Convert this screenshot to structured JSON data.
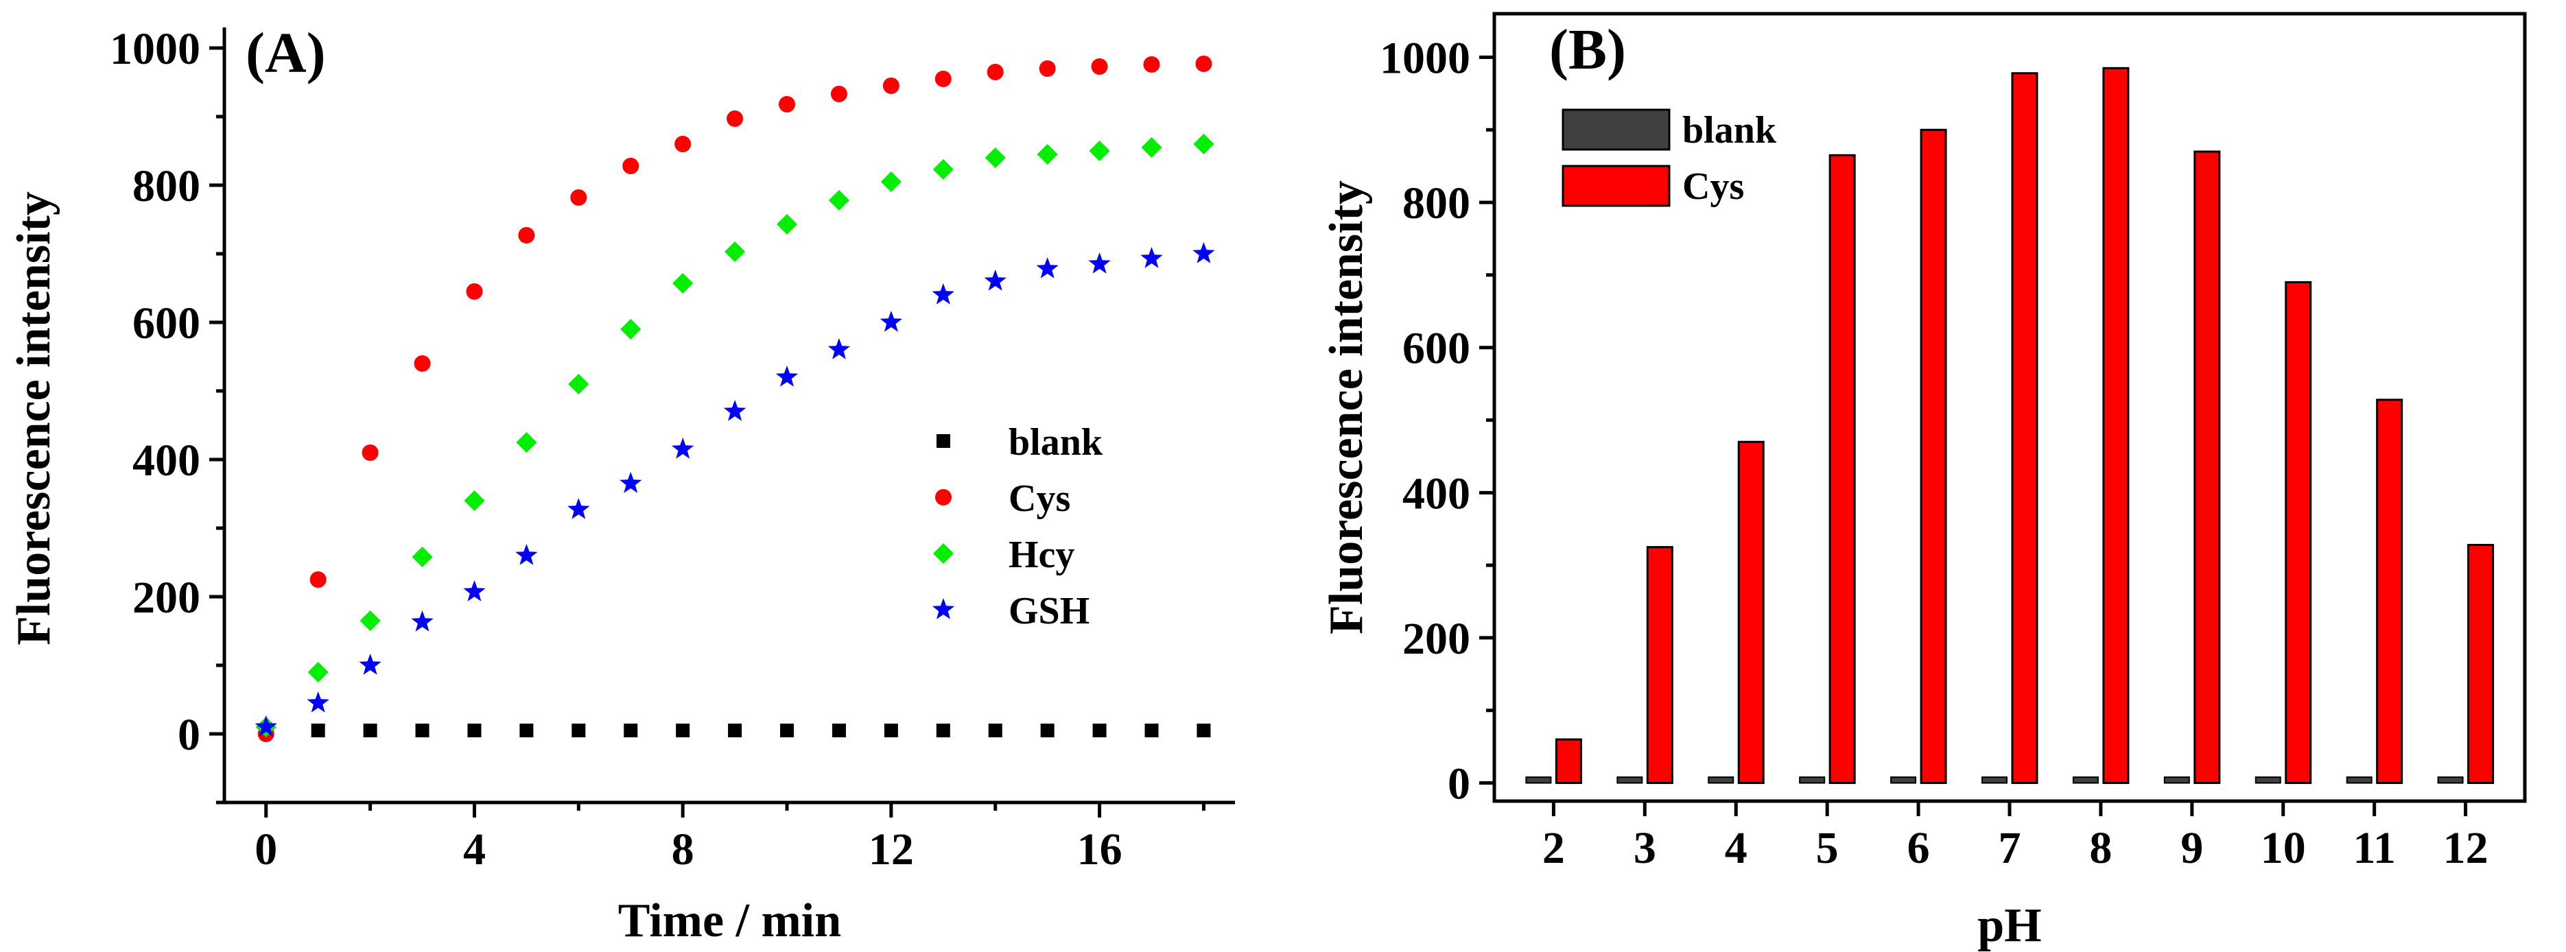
{
  "chart_data": [
    {
      "type": "scatter",
      "panel_label": "(A)",
      "xlabel": "Time / min",
      "ylabel": "Fluorescence intensity",
      "xlim": [
        -0.8,
        18.6
      ],
      "ylim": [
        -100,
        1020
      ],
      "xticks": [
        0,
        4,
        8,
        12,
        16
      ],
      "yticks": [
        0,
        200,
        400,
        600,
        800,
        1000
      ],
      "legend_position": "center-right",
      "x": [
        0,
        1,
        2,
        3,
        4,
        5,
        6,
        7,
        8,
        9,
        10,
        11,
        12,
        13,
        14,
        15,
        16,
        17,
        18
      ],
      "series": [
        {
          "name": "blank",
          "marker": "square",
          "color": "#000000",
          "values": [
            5,
            5,
            5,
            5,
            5,
            5,
            5,
            5,
            5,
            5,
            5,
            5,
            5,
            5,
            5,
            5,
            5,
            5,
            5
          ]
        },
        {
          "name": "Cys",
          "marker": "circle",
          "color": "#ff0000",
          "values": [
            0,
            225,
            410,
            540,
            645,
            727,
            782,
            828,
            860,
            897,
            918,
            933,
            945,
            955,
            965,
            970,
            973,
            976,
            977
          ]
        },
        {
          "name": "Hcy",
          "marker": "diamond",
          "color": "#00ee00",
          "values": [
            10,
            90,
            165,
            258,
            340,
            425,
            510,
            590,
            657,
            703,
            743,
            778,
            805,
            823,
            840,
            845,
            850,
            855,
            860
          ]
        },
        {
          "name": "GSH",
          "marker": "star",
          "color": "#0000ff",
          "values": [
            10,
            45,
            100,
            163,
            207,
            260,
            327,
            365,
            415,
            470,
            520,
            560,
            600,
            640,
            660,
            678,
            685,
            693,
            700
          ]
        }
      ]
    },
    {
      "type": "bar",
      "panel_label": "(B)",
      "xlabel": "pH",
      "ylabel": "Fluorescence intensity",
      "ylim": [
        -25,
        1060
      ],
      "yticks": [
        0,
        200,
        400,
        600,
        800,
        1000
      ],
      "legend_position": "top-left",
      "categories": [
        "2",
        "3",
        "4",
        "5",
        "6",
        "7",
        "8",
        "9",
        "10",
        "11",
        "12"
      ],
      "series": [
        {
          "name": "blank",
          "color": "#404040",
          "values": [
            8,
            8,
            8,
            8,
            8,
            8,
            8,
            8,
            8,
            8,
            8
          ]
        },
        {
          "name": "Cys",
          "color": "#ff0000",
          "values": [
            60,
            325,
            470,
            865,
            900,
            978,
            985,
            870,
            690,
            528,
            328
          ]
        }
      ]
    }
  ]
}
